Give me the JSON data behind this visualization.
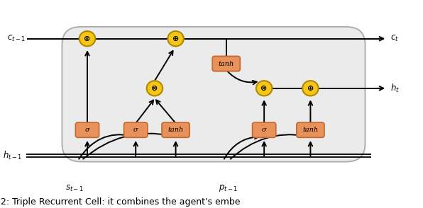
{
  "fig_width": 5.96,
  "fig_height": 2.94,
  "dpi": 100,
  "bg_color": "#ffffff",
  "box_bg": "#eeeeee",
  "box_edge": "#bbbbbb",
  "gate_color": "#f5c518",
  "gate_edge": "#b08800",
  "rect_color": "#e8915a",
  "rect_edge": "#c06830",
  "caption": "2: Triple Recurrent Cell: it combines the agent's embe",
  "caption_fontsize": 9,
  "xlim": [
    0,
    10
  ],
  "ylim": [
    0,
    5
  ]
}
